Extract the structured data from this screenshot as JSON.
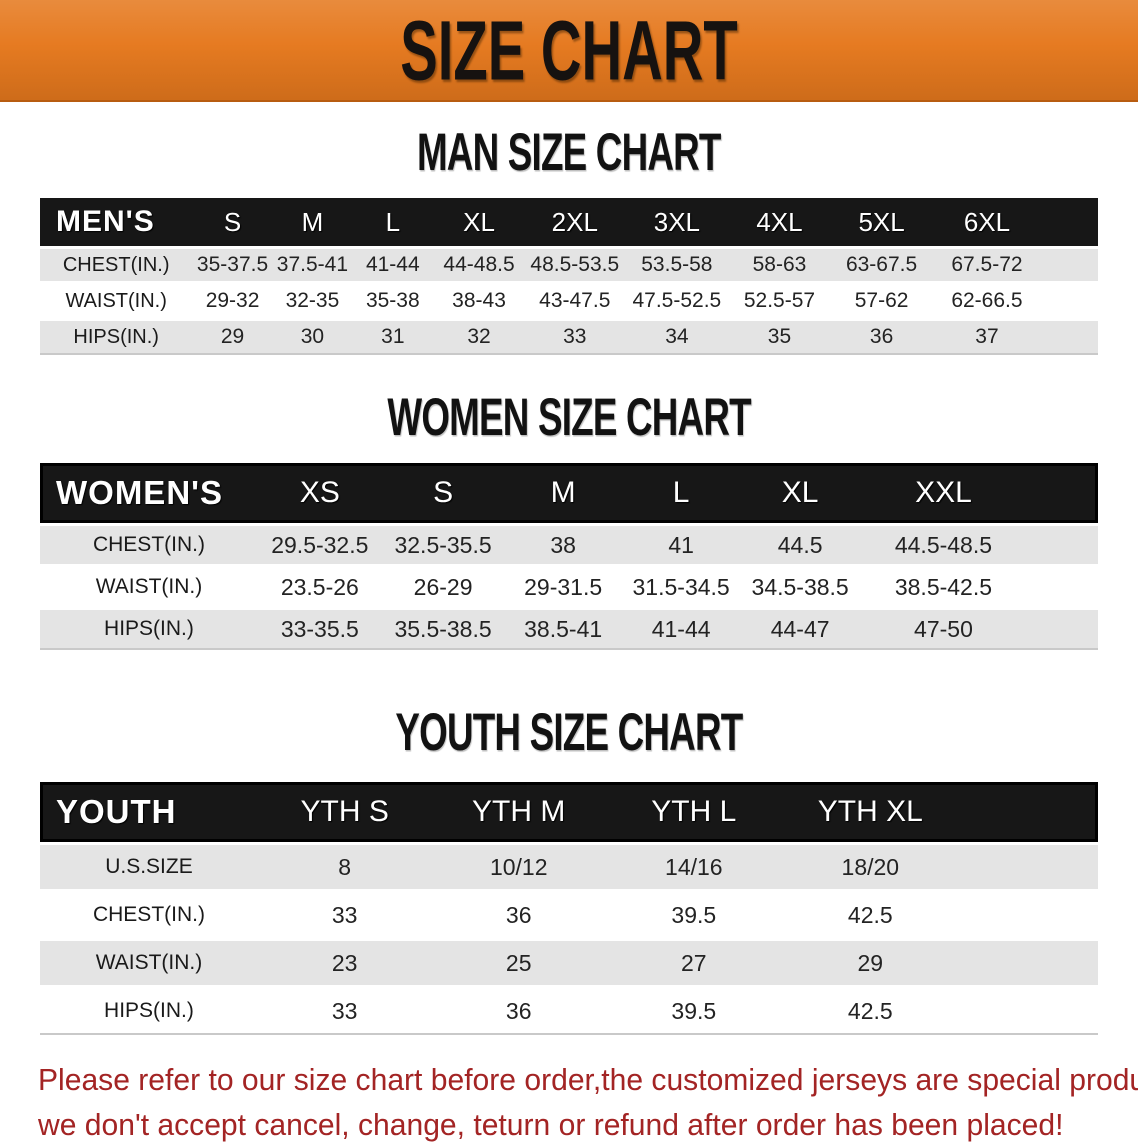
{
  "banner": {
    "title": "SIZE CHART",
    "bg_color": "#E5781D",
    "text_color": "#161210"
  },
  "sections": [
    {
      "heading": "MAN SIZE CHART",
      "header_label": "MEN'S",
      "columns": [
        "S",
        "M",
        "L",
        "XL",
        "2XL",
        "3XL",
        "4XL",
        "5XL",
        "6XL"
      ],
      "rows": [
        {
          "label": "CHEST(IN.)",
          "values": [
            "35-37.5",
            "37.5-41",
            "41-44",
            "44-48.5",
            "48.5-53.5",
            "53.5-58",
            "58-63",
            "63-67.5",
            "67.5-72"
          ]
        },
        {
          "label": "WAIST(IN.)",
          "values": [
            "29-32",
            "32-35",
            "35-38",
            "38-43",
            "43-47.5",
            "47.5-52.5",
            "52.5-57",
            "57-62",
            "62-66.5"
          ]
        },
        {
          "label": "HIPS(IN.)",
          "values": [
            "29",
            "30",
            "31",
            "32",
            "33",
            "34",
            "35",
            "36",
            "37"
          ]
        }
      ]
    },
    {
      "heading": "WOMEN SIZE CHART",
      "header_label": "WOMEN'S",
      "columns": [
        "XS",
        "S",
        "M",
        "L",
        "XL",
        "XXL"
      ],
      "rows": [
        {
          "label": "CHEST(IN.)",
          "values": [
            "29.5-32.5",
            "32.5-35.5",
            "38",
            "41",
            "44.5",
            "44.5-48.5"
          ]
        },
        {
          "label": "WAIST(IN.)",
          "values": [
            "23.5-26",
            "26-29",
            "29-31.5",
            "31.5-34.5",
            "34.5-38.5",
            "38.5-42.5"
          ]
        },
        {
          "label": "HIPS(IN.)",
          "values": [
            "33-35.5",
            "35.5-38.5",
            "38.5-41",
            "41-44",
            "44-47",
            "47-50"
          ]
        }
      ]
    },
    {
      "heading": "YOUTH SIZE CHART",
      "header_label": "YOUTH",
      "columns": [
        "YTH S",
        "YTH M",
        "YTH L",
        "YTH XL"
      ],
      "rows": [
        {
          "label": "U.S.SIZE",
          "values": [
            "8",
            "10/12",
            "14/16",
            "18/20"
          ]
        },
        {
          "label": "CHEST(IN.)",
          "values": [
            "33",
            "36",
            "39.5",
            "42.5"
          ]
        },
        {
          "label": "WAIST(IN.)",
          "values": [
            "23",
            "25",
            "27",
            "29"
          ]
        },
        {
          "label": "HIPS(IN.)",
          "values": [
            "33",
            "36",
            "39.5",
            "42.5"
          ]
        }
      ]
    }
  ],
  "disclaimer": {
    "line1": "Please refer to our size chart before order,the customized jerseys are special products,",
    "line2": "we don't accept cancel, change, teturn or refund after order has been placed!",
    "color": "#A32424"
  }
}
